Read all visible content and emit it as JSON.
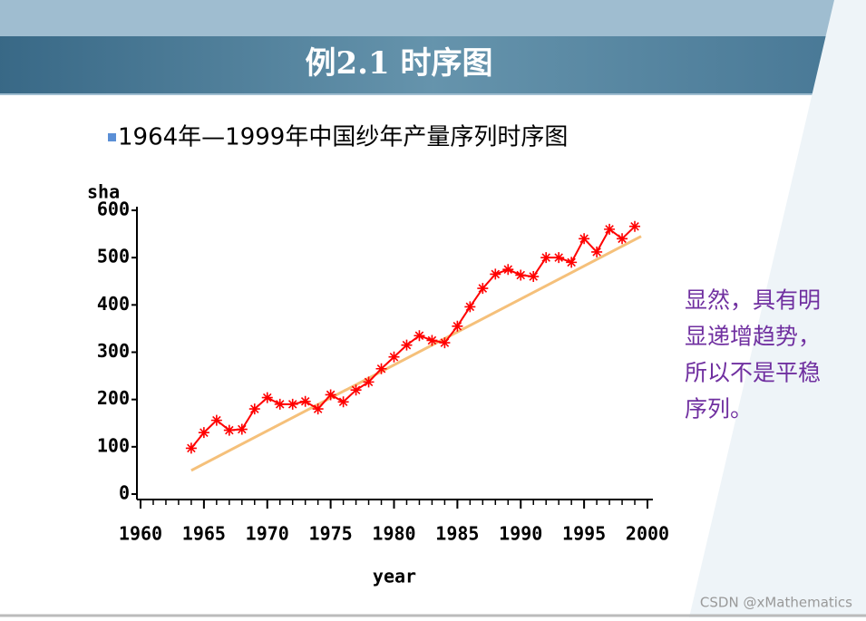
{
  "header": {
    "title": "例2.1  时序图"
  },
  "bullet": "1964年—1999年中国纱年产量序列时序图",
  "note": {
    "lines": [
      "显然，具有明",
      "显递增趋势，",
      "所以不是平稳",
      "序列。"
    ]
  },
  "watermark": "CSDN @xMathematics",
  "chart_data": {
    "type": "line",
    "y_label": "sha",
    "x_label": "year",
    "x": [
      1964,
      1965,
      1966,
      1967,
      1968,
      1969,
      1970,
      1971,
      1972,
      1973,
      1974,
      1975,
      1976,
      1977,
      1978,
      1979,
      1980,
      1981,
      1982,
      1983,
      1984,
      1985,
      1986,
      1987,
      1988,
      1989,
      1990,
      1991,
      1992,
      1993,
      1994,
      1995,
      1996,
      1997,
      1998,
      1999
    ],
    "series": [
      {
        "color": "#ff0000",
        "values": [
          97,
          130,
          156,
          135,
          137,
          180,
          204,
          190,
          190,
          196,
          180,
          210,
          195,
          220,
          237,
          265,
          290,
          315,
          335,
          325,
          320,
          355,
          396,
          435,
          465,
          475,
          463,
          460,
          500,
          500,
          490,
          540,
          512,
          560,
          540,
          566
        ]
      }
    ],
    "trend": {
      "color": "#f5c07a",
      "x": [
        1964,
        1999.5
      ],
      "values": [
        50,
        545
      ]
    },
    "xlim": [
      1960,
      2000
    ],
    "xticks": [
      1960,
      1965,
      1970,
      1975,
      1980,
      1985,
      1990,
      1995,
      2000
    ],
    "ylim": [
      0,
      600
    ],
    "yticks": [
      0,
      100,
      200,
      300,
      400,
      500,
      600
    ]
  }
}
